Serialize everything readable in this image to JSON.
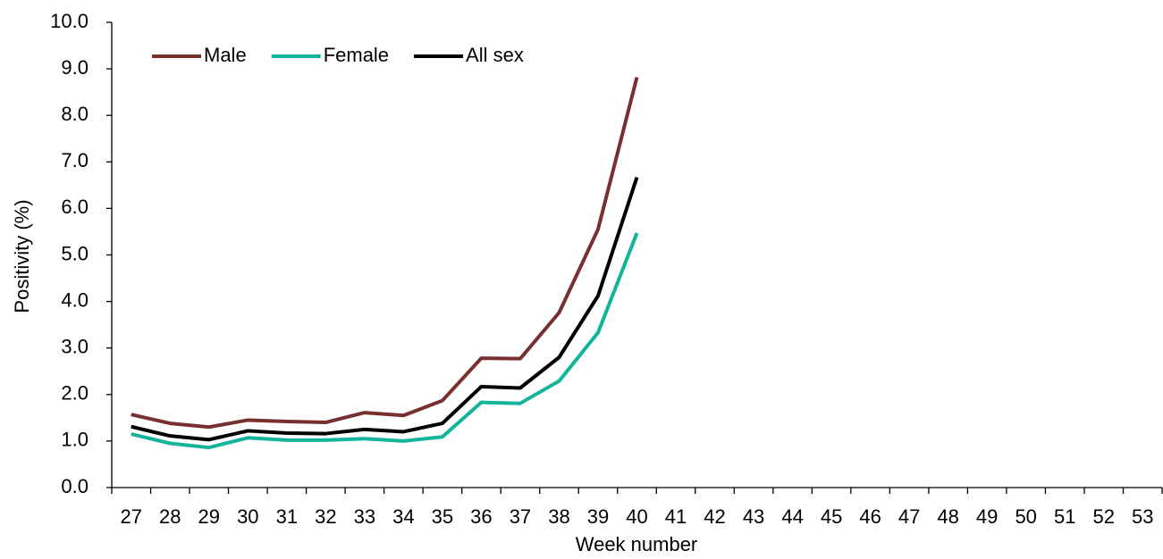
{
  "chart_data": {
    "type": "line",
    "x_label": "Week number",
    "y_label": "Positivity (%)",
    "categories": [
      "27",
      "28",
      "29",
      "30",
      "31",
      "32",
      "33",
      "34",
      "35",
      "36",
      "37",
      "38",
      "39",
      "40",
      "41",
      "42",
      "43",
      "44",
      "45",
      "46",
      "47",
      "48",
      "49",
      "50",
      "51",
      "52",
      "53"
    ],
    "series": [
      {
        "name": "Male",
        "color": "#772f2f",
        "values": [
          1.57,
          1.38,
          1.3,
          1.45,
          1.42,
          1.4,
          1.61,
          1.55,
          1.87,
          2.78,
          2.77,
          3.76,
          5.55,
          8.82,
          null,
          null,
          null,
          null,
          null,
          null,
          null,
          null,
          null,
          null,
          null,
          null,
          null
        ]
      },
      {
        "name": "Female",
        "color": "#12b59a",
        "values": [
          1.15,
          0.95,
          0.86,
          1.07,
          1.02,
          1.02,
          1.05,
          1.0,
          1.09,
          1.83,
          1.81,
          2.29,
          3.33,
          5.47,
          null,
          null,
          null,
          null,
          null,
          null,
          null,
          null,
          null,
          null,
          null,
          null,
          null
        ]
      },
      {
        "name": "All sex",
        "color": "#000000",
        "values": [
          1.31,
          1.11,
          1.03,
          1.22,
          1.17,
          1.16,
          1.25,
          1.2,
          1.38,
          2.17,
          2.14,
          2.8,
          4.12,
          6.67,
          null,
          null,
          null,
          null,
          null,
          null,
          null,
          null,
          null,
          null,
          null,
          null,
          null
        ]
      }
    ],
    "ylim": [
      0,
      10
    ],
    "yticks": [
      {
        "value": 0,
        "label": "0.0"
      },
      {
        "value": 1,
        "label": "1.0"
      },
      {
        "value": 2,
        "label": "2.0"
      },
      {
        "value": 3,
        "label": "3.0"
      },
      {
        "value": 4,
        "label": "4.0"
      },
      {
        "value": 5,
        "label": "5.0"
      },
      {
        "value": 6,
        "label": "6.0"
      },
      {
        "value": 7,
        "label": "7.0"
      },
      {
        "value": 8,
        "label": "8.0"
      },
      {
        "value": 9,
        "label": "9.0"
      },
      {
        "value": 10,
        "label": "10.0"
      }
    ],
    "grid": false,
    "legend": "upper left"
  }
}
